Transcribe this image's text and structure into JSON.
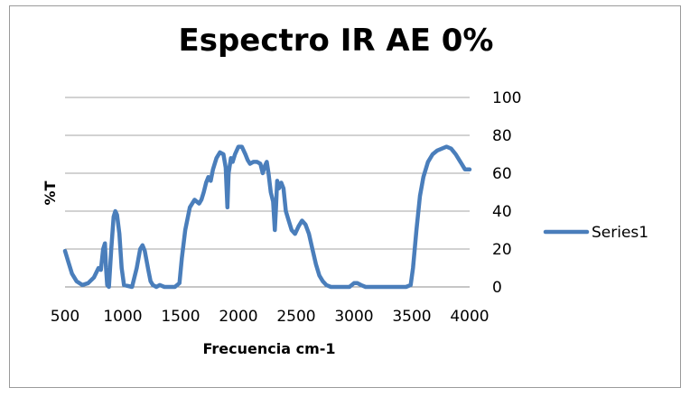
{
  "chart_data": {
    "type": "line",
    "title": "Espectro IR  AE 0%",
    "xlabel": "Frecuencia  cm-1",
    "ylabel": "%T",
    "xlim": [
      500,
      4000
    ],
    "ylim": [
      0,
      100
    ],
    "x_ticks": [
      500,
      1000,
      1500,
      2000,
      2500,
      3000,
      3500,
      4000
    ],
    "y_ticks": [
      0,
      20,
      40,
      60,
      80,
      100
    ],
    "grid": "horizontal",
    "legend_position": "right",
    "series": [
      {
        "name": "Series1",
        "color": "#4a7ebb",
        "points": [
          [
            500,
            19
          ],
          [
            530,
            13
          ],
          [
            560,
            7
          ],
          [
            600,
            3
          ],
          [
            650,
            1
          ],
          [
            700,
            2
          ],
          [
            750,
            5
          ],
          [
            790,
            10
          ],
          [
            810,
            9
          ],
          [
            830,
            20
          ],
          [
            845,
            23
          ],
          [
            855,
            10
          ],
          [
            865,
            1
          ],
          [
            880,
            0
          ],
          [
            900,
            20
          ],
          [
            920,
            37
          ],
          [
            935,
            40
          ],
          [
            950,
            38
          ],
          [
            970,
            28
          ],
          [
            990,
            10
          ],
          [
            1010,
            1
          ],
          [
            1080,
            0
          ],
          [
            1120,
            10
          ],
          [
            1150,
            20
          ],
          [
            1170,
            22
          ],
          [
            1190,
            19
          ],
          [
            1220,
            9
          ],
          [
            1240,
            3
          ],
          [
            1260,
            1
          ],
          [
            1290,
            0
          ],
          [
            1320,
            1
          ],
          [
            1360,
            0
          ],
          [
            1450,
            0
          ],
          [
            1490,
            2
          ],
          [
            1510,
            15
          ],
          [
            1540,
            30
          ],
          [
            1580,
            42
          ],
          [
            1620,
            46
          ],
          [
            1660,
            44
          ],
          [
            1680,
            46
          ],
          [
            1700,
            50
          ],
          [
            1720,
            55
          ],
          [
            1740,
            58
          ],
          [
            1760,
            56
          ],
          [
            1780,
            62
          ],
          [
            1810,
            68
          ],
          [
            1840,
            71
          ],
          [
            1870,
            70
          ],
          [
            1890,
            63
          ],
          [
            1905,
            42
          ],
          [
            1915,
            60
          ],
          [
            1935,
            68
          ],
          [
            1950,
            66
          ],
          [
            1970,
            70
          ],
          [
            2000,
            74
          ],
          [
            2030,
            74
          ],
          [
            2060,
            70
          ],
          [
            2080,
            67
          ],
          [
            2100,
            65
          ],
          [
            2130,
            66
          ],
          [
            2160,
            66
          ],
          [
            2190,
            65
          ],
          [
            2210,
            60
          ],
          [
            2230,
            64
          ],
          [
            2245,
            66
          ],
          [
            2260,
            60
          ],
          [
            2280,
            50
          ],
          [
            2300,
            45
          ],
          [
            2315,
            30
          ],
          [
            2325,
            42
          ],
          [
            2335,
            56
          ],
          [
            2350,
            52
          ],
          [
            2370,
            55
          ],
          [
            2390,
            52
          ],
          [
            2410,
            40
          ],
          [
            2430,
            36
          ],
          [
            2460,
            30
          ],
          [
            2490,
            28
          ],
          [
            2520,
            32
          ],
          [
            2550,
            35
          ],
          [
            2580,
            33
          ],
          [
            2610,
            28
          ],
          [
            2640,
            20
          ],
          [
            2670,
            12
          ],
          [
            2700,
            6
          ],
          [
            2730,
            3
          ],
          [
            2760,
            1
          ],
          [
            2800,
            0
          ],
          [
            2900,
            0
          ],
          [
            2960,
            0
          ],
          [
            3000,
            2
          ],
          [
            3030,
            2
          ],
          [
            3060,
            1
          ],
          [
            3100,
            0
          ],
          [
            3300,
            0
          ],
          [
            3450,
            0
          ],
          [
            3490,
            1
          ],
          [
            3510,
            10
          ],
          [
            3540,
            30
          ],
          [
            3570,
            48
          ],
          [
            3600,
            58
          ],
          [
            3640,
            66
          ],
          [
            3680,
            70
          ],
          [
            3720,
            72
          ],
          [
            3760,
            73
          ],
          [
            3800,
            74
          ],
          [
            3840,
            73
          ],
          [
            3880,
            70
          ],
          [
            3920,
            66
          ],
          [
            3960,
            62
          ],
          [
            4000,
            62
          ]
        ]
      }
    ]
  }
}
